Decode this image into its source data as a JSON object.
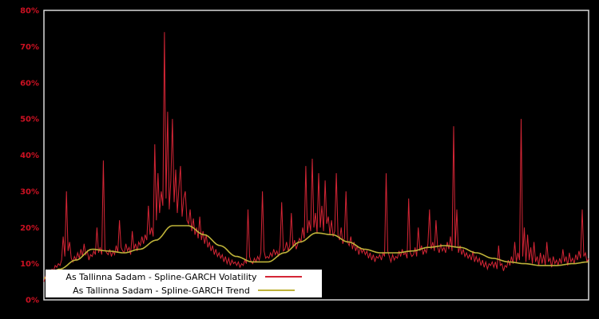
{
  "colors": {
    "background": "#000000",
    "frame": "#d9d9d9",
    "axis_label": "#cc1122",
    "legend_background": "#ffffff",
    "legend_text": "#000000"
  },
  "chart_data": {
    "type": "line",
    "title": "",
    "xlabel": "",
    "ylabel": "",
    "ylim": [
      0,
      80
    ],
    "yticks": [
      0,
      10,
      20,
      30,
      40,
      50,
      60,
      70,
      80
    ],
    "ytick_suffix": "%",
    "xticks": [],
    "grid": false,
    "legend_position": "bottom-left",
    "series": [
      {
        "name": "As Tallinna Sadam - Spline-GARCH Volatility",
        "color": "#d42535",
        "smooth": false,
        "values": [
          5.0,
          6.5,
          6.0,
          7.5,
          7.0,
          8.5,
          8.0,
          9.5,
          9.0,
          10.0,
          9.5,
          11.0,
          17.5,
          12.0,
          30.0,
          13.5,
          16.0,
          11.5,
          10.5,
          12.0,
          11.0,
          13.0,
          11.5,
          14.0,
          12.0,
          15.5,
          12.5,
          13.5,
          11.0,
          12.5,
          12.0,
          13.5,
          12.5,
          20.0,
          13.0,
          14.5,
          12.5,
          38.5,
          14.0,
          13.0,
          12.5,
          14.0,
          12.0,
          13.5,
          12.5,
          15.0,
          13.0,
          22.0,
          14.5,
          13.5,
          13.0,
          15.5,
          13.5,
          14.5,
          12.5,
          19.0,
          14.0,
          15.5,
          13.5,
          16.0,
          15.0,
          17.5,
          15.5,
          18.0,
          16.5,
          26.0,
          18.0,
          20.0,
          17.5,
          43.0,
          22.0,
          35.0,
          24.0,
          30.0,
          26.0,
          74.0,
          28.0,
          52.0,
          25.0,
          33.0,
          50.0,
          27.0,
          36.0,
          24.0,
          31.0,
          37.0,
          23.0,
          28.0,
          30.0,
          22.0,
          21.0,
          25.0,
          19.0,
          22.5,
          18.0,
          20.0,
          17.0,
          23.0,
          16.5,
          19.0,
          15.5,
          18.0,
          14.5,
          16.0,
          13.5,
          15.0,
          12.5,
          14.0,
          12.0,
          13.0,
          11.5,
          12.5,
          10.5,
          12.0,
          10.0,
          11.5,
          9.5,
          11.0,
          10.0,
          10.5,
          9.5,
          10.5,
          9.0,
          10.0,
          9.5,
          11.0,
          10.0,
          25.0,
          12.0,
          10.5,
          10.0,
          11.5,
          10.5,
          12.0,
          11.0,
          13.0,
          30.0,
          13.5,
          11.5,
          12.0,
          11.5,
          13.0,
          12.0,
          14.0,
          12.5,
          13.5,
          12.0,
          15.0,
          27.0,
          13.5,
          14.0,
          16.0,
          13.5,
          15.0,
          24.0,
          14.5,
          16.5,
          14.0,
          15.5,
          17.0,
          16.0,
          20.0,
          17.0,
          37.0,
          18.5,
          22.0,
          19.0,
          39.0,
          20.0,
          24.0,
          18.5,
          35.0,
          20.0,
          26.0,
          19.0,
          33.0,
          21.0,
          23.0,
          18.0,
          22.0,
          17.5,
          19.0,
          35.0,
          18.0,
          16.5,
          20.0,
          15.5,
          17.0,
          30.0,
          16.0,
          15.0,
          17.5,
          14.0,
          16.0,
          13.5,
          15.0,
          12.5,
          14.5,
          13.0,
          14.0,
          12.5,
          13.5,
          11.5,
          13.0,
          11.0,
          12.5,
          10.5,
          12.0,
          11.5,
          12.5,
          11.0,
          13.0,
          12.0,
          35.0,
          13.5,
          12.0,
          10.5,
          12.5,
          11.0,
          12.0,
          11.5,
          13.5,
          12.0,
          14.0,
          12.5,
          13.0,
          11.5,
          28.0,
          13.0,
          12.0,
          12.5,
          14.5,
          12.0,
          20.0,
          13.5,
          15.0,
          12.5,
          14.0,
          13.0,
          15.5,
          25.0,
          14.0,
          16.0,
          13.5,
          22.0,
          14.5,
          13.0,
          15.5,
          13.5,
          14.5,
          13.0,
          16.0,
          14.0,
          17.5,
          13.5,
          48.0,
          14.5,
          25.0,
          13.0,
          15.0,
          12.5,
          14.0,
          12.0,
          13.0,
          11.5,
          12.5,
          11.0,
          13.5,
          10.5,
          12.0,
          10.5,
          11.5,
          9.5,
          11.0,
          9.0,
          10.5,
          8.5,
          10.0,
          9.5,
          10.5,
          9.0,
          10.5,
          8.5,
          15.0,
          9.5,
          10.0,
          8.0,
          9.5,
          9.0,
          11.0,
          9.5,
          12.0,
          10.0,
          16.0,
          10.5,
          13.0,
          11.0,
          50.0,
          12.0,
          20.0,
          10.5,
          18.0,
          11.0,
          14.5,
          10.0,
          16.0,
          10.5,
          12.0,
          9.5,
          13.0,
          10.0,
          12.5,
          9.5,
          16.0,
          10.5,
          11.5,
          9.0,
          12.0,
          10.0,
          11.0,
          9.5,
          11.5,
          10.0,
          14.0,
          10.5,
          12.0,
          9.5,
          13.0,
          10.5,
          11.5,
          10.0,
          12.5,
          11.0,
          13.5,
          11.5,
          25.0,
          12.0,
          13.0,
          10.5,
          11.5
        ]
      },
      {
        "name": "As Tallinna Sadam - Spline-GARCH Trend",
        "color": "#beb239",
        "smooth": true,
        "values": [
          6.0,
          8.5,
          11.0,
          14.0,
          13.5,
          13.0,
          14.0,
          16.5,
          20.5,
          20.5,
          18.0,
          15.0,
          12.0,
          10.5,
          10.5,
          13.0,
          16.0,
          18.5,
          18.0,
          16.0,
          14.0,
          13.0,
          13.0,
          13.5,
          14.5,
          15.0,
          14.5,
          13.0,
          11.5,
          10.5,
          10.0,
          9.5,
          9.5,
          10.0,
          10.5
        ]
      }
    ]
  }
}
